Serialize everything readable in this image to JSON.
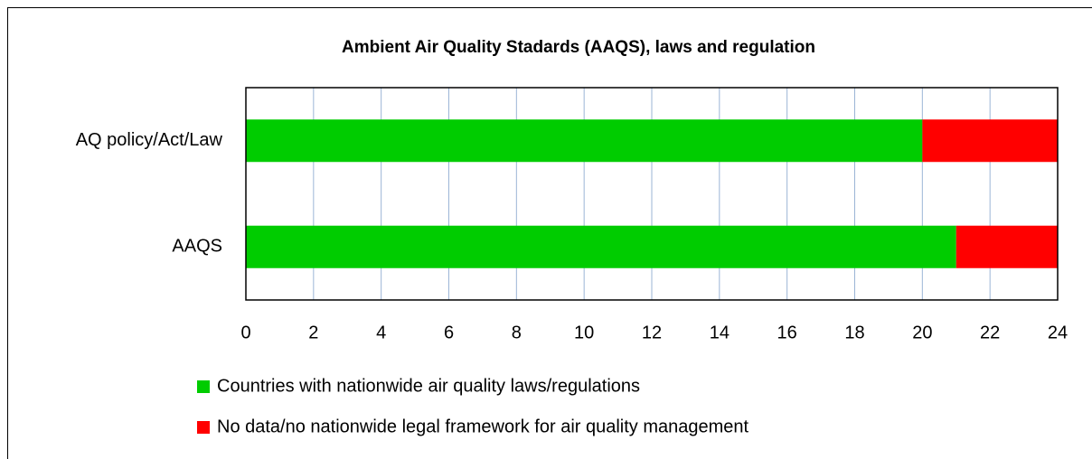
{
  "chart_data": {
    "type": "stacked-bar-horizontal",
    "title": "Ambient Air Quality Stadards (AAQS), laws and regulation",
    "categories": [
      "AQ policy/Act/Law",
      "AAQS"
    ],
    "series": [
      {
        "name": "Countries with nationwide air quality laws/regulations",
        "color": "#00cc00",
        "values": [
          20,
          21
        ]
      },
      {
        "name": "No data/no nationwide legal framework for air quality management",
        "color": "#ff0000",
        "values": [
          4,
          3
        ]
      }
    ],
    "xlim": [
      0,
      24
    ],
    "xticks": [
      0,
      2,
      4,
      6,
      8,
      10,
      12,
      14,
      16,
      18,
      20,
      22,
      24
    ],
    "grid": true
  }
}
